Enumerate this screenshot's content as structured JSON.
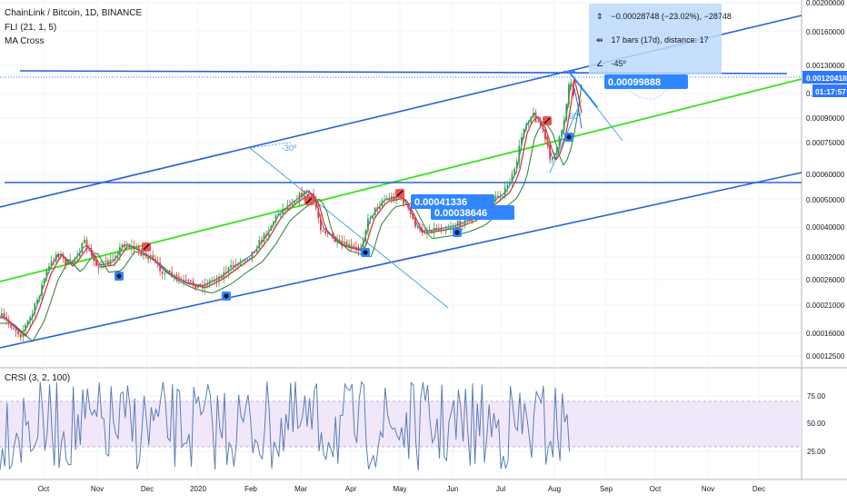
{
  "header": {
    "symbol": "ChainLink / Bitcoin, 1D, BINANCE",
    "indicator_1": "FLI (21, 1, 5)",
    "indicator_2": "MA Cross",
    "oscillator_label": "CRSI (3, 2, 100)"
  },
  "measure": {
    "price_change": "−0.00028748 (−23.02%), −28748",
    "bars": "17 bars (17d), distance: 17",
    "angle": "-45º",
    "icon_price": "price-range-icon",
    "icon_bars": "bars-range-icon",
    "icon_angle": "angle-icon"
  },
  "annotations": {
    "angle_left": "-30º",
    "angle_right": "60º",
    "label_top": "0.00099888",
    "label_mid_a": "0.00041336",
    "label_mid_b": "0.00038646"
  },
  "price_axis": {
    "ticks": [
      "0.00200000",
      "0.00160000",
      "0.00130000",
      "0.00105000",
      "0.00090000",
      "0.00075000",
      "0.00060000",
      "0.00050000",
      "0.00040000",
      "0.00032000",
      "0.00026000",
      "0.00021000",
      "0.00016000",
      "0.00012500"
    ],
    "last_price": "0.00120418",
    "countdown": "01:17:57"
  },
  "osc_axis": {
    "ticks": [
      "75.00",
      "50.00",
      "25.00"
    ]
  },
  "time_axis": {
    "labels": [
      "Oct",
      "Nov",
      "Dec",
      "2020",
      "Feb",
      "Mar",
      "Apr",
      "May",
      "Jun",
      "Jul",
      "Aug",
      "Sep",
      "Oct",
      "Nov",
      "Dec"
    ]
  },
  "colors": {
    "channel": "#2962d5",
    "trend": "#37e31a",
    "measure_line": "#2f86ff",
    "last_price_bg": "#2f77ff",
    "osc_line": "#5a7fb3",
    "osc_band": "#f1e7fb",
    "up_candle": "#3ba53a",
    "down_candle": "#e0403a"
  }
}
